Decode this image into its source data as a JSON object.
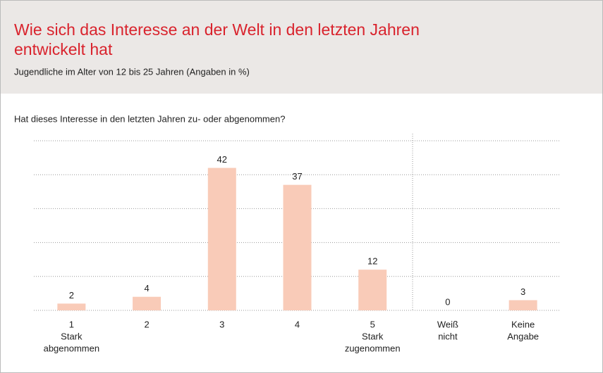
{
  "chart_data": {
    "type": "bar",
    "title": "Wie sich das Interesse an der Welt in den letzten Jahren entwickelt hat",
    "subtitle": "Jugendliche im Alter von 12 bis 25 Jahren (Angaben in %)",
    "question": "Hat dieses Interesse in den letzten Jahren zu- oder abgenommen?",
    "categories": [
      [
        "1",
        "Stark",
        "abgenommen"
      ],
      [
        "2"
      ],
      [
        "3"
      ],
      [
        "4"
      ],
      [
        "5",
        "Stark",
        "zugenommen"
      ],
      [
        "Weiß",
        "nicht"
      ],
      [
        "Keine",
        "Angabe"
      ]
    ],
    "values": [
      2,
      4,
      42,
      37,
      12,
      0,
      3
    ],
    "color": "#f9cbb8",
    "ylim": [
      0,
      50
    ],
    "yticks": [
      0,
      10,
      20,
      30,
      40,
      50
    ],
    "grid": true
  }
}
